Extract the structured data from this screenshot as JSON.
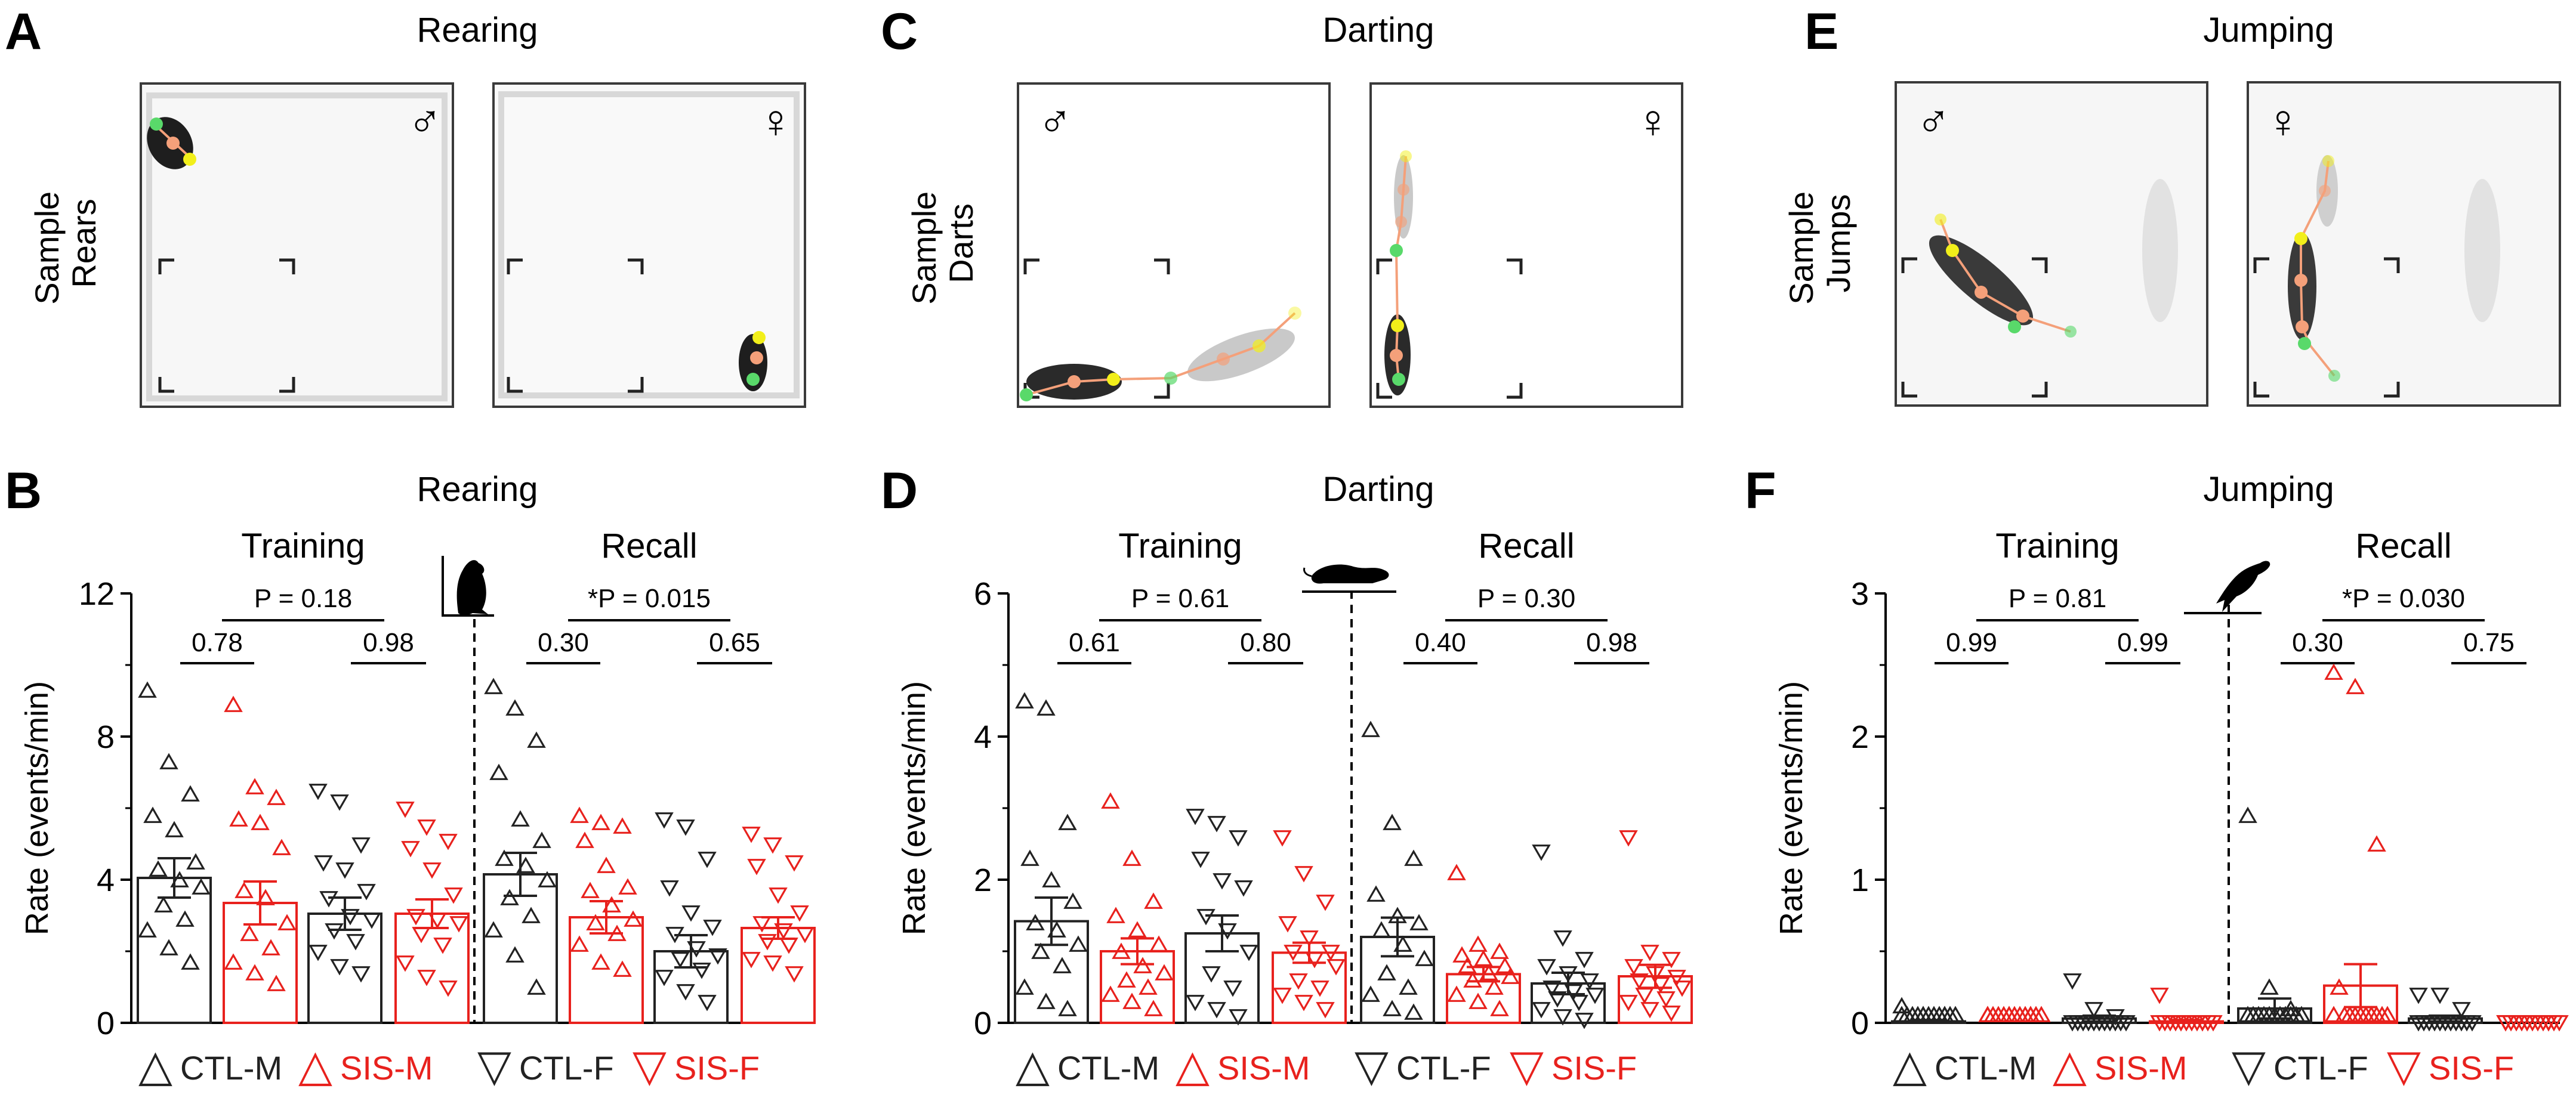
{
  "panel_letters": [
    "A",
    "C",
    "E",
    "B",
    "D",
    "F"
  ],
  "behaviors": [
    "Rearing",
    "Darting",
    "Jumping"
  ],
  "sample_labels": [
    [
      "Sample",
      "Rears"
    ],
    [
      "Sample",
      "Darts"
    ],
    [
      "Sample",
      "Jumps"
    ]
  ],
  "sex_symbols": {
    "male": "♂",
    "female": "♀"
  },
  "phase_labels": {
    "training": "Training",
    "recall": "Recall"
  },
  "legend": [
    {
      "marker": "△",
      "label": "CTL-M",
      "color": "#222222"
    },
    {
      "marker": "△",
      "label": "SIS-M",
      "color": "#e8211d"
    },
    {
      "marker": "▽",
      "label": "CTL-F",
      "color": "#222222"
    },
    {
      "marker": "▽",
      "label": "SIS-F",
      "color": "#e8211d"
    }
  ],
  "colors": {
    "ctl": "#222222",
    "sis": "#e8211d",
    "track_orange": "#f4a07a",
    "track_green": "#59d96a",
    "track_yellow": "#f2ef1a"
  },
  "chart_data": [
    {
      "type": "bar",
      "panel": "B",
      "title": "Rearing",
      "xlabel": "",
      "ylabel": "Rate (events/min)",
      "ylim": [
        0,
        12
      ],
      "yticks": [
        "0",
        "4",
        "8",
        "12"
      ],
      "phases": [
        "Training",
        "Recall"
      ],
      "groups": [
        "CTL-M",
        "SIS-M",
        "CTL-F",
        "SIS-F"
      ],
      "series": [
        {
          "name": "Training",
          "values": [
            4.05,
            3.35,
            3.05,
            3.05
          ],
          "sem": [
            0.55,
            0.6,
            0.45,
            0.4
          ],
          "points": [
            [
              9.1,
              7.1,
              6.2,
              5.6,
              5.2,
              4.3,
              4.1,
              3.8,
              3.6,
              3.1,
              2.7,
              2.4,
              1.9,
              1.5
            ],
            [
              8.7,
              6.4,
              6.1,
              5.5,
              5.4,
              4.7,
              3.5,
              3.3,
              2.6,
              2.3,
              1.9,
              1.5,
              1.2,
              0.9
            ],
            [
              6.5,
              6.2,
              5.0,
              4.5,
              4.3,
              3.7,
              3.5,
              3.0,
              2.9,
              2.6,
              2.3,
              2.0,
              1.6,
              1.4
            ],
            [
              6.0,
              5.5,
              5.1,
              4.9,
              4.3,
              3.6,
              3.0,
              2.9,
              2.8,
              2.5,
              2.2,
              1.7,
              1.3,
              1.0
            ]
          ]
        },
        {
          "name": "Recall",
          "values": [
            4.15,
            2.95,
            2.0,
            2.65
          ],
          "sem": [
            0.6,
            0.45,
            0.45,
            0.3
          ],
          "points": [
            [
              9.2,
              8.6,
              7.7,
              6.8,
              5.5,
              4.9,
              4.4,
              4.2,
              3.8,
              3.3,
              2.8,
              2.4,
              1.7,
              0.8
            ],
            [
              5.6,
              5.4,
              5.3,
              4.9,
              4.2,
              3.6,
              3.5,
              3.1,
              2.7,
              2.6,
              2.3,
              2.0,
              1.5,
              1.3
            ],
            [
              5.7,
              5.5,
              4.6,
              3.8,
              3.1,
              2.7,
              2.5,
              2.1,
              1.9,
              1.8,
              1.5,
              1.3,
              0.9,
              0.6
            ],
            [
              5.3,
              5.0,
              4.5,
              4.4,
              3.6,
              3.1,
              2.8,
              2.6,
              2.5,
              2.3,
              2.2,
              1.8,
              1.7,
              1.4
            ]
          ]
        }
      ],
      "annotations": {
        "top_p": [
          "P = 0.18",
          "*P = 0.015"
        ],
        "pair_p": [
          [
            "0.78",
            "0.98"
          ],
          [
            "0.30",
            "0.65"
          ]
        ]
      }
    },
    {
      "type": "bar",
      "panel": "D",
      "title": "Darting",
      "xlabel": "",
      "ylabel": "Rate (events/min)",
      "ylim": [
        0,
        6
      ],
      "yticks": [
        "0",
        "2",
        "4",
        "6"
      ],
      "phases": [
        "Training",
        "Recall"
      ],
      "groups": [
        "CTL-M",
        "SIS-M",
        "CTL-F",
        "SIS-F"
      ],
      "series": [
        {
          "name": "Training",
          "values": [
            1.42,
            1.0,
            1.25,
            0.98
          ],
          "sem": [
            0.33,
            0.18,
            0.25,
            0.14
          ],
          "points": [
            [
              4.4,
              4.3,
              2.7,
              2.2,
              1.9,
              1.6,
              1.3,
              1.2,
              1.0,
              0.9,
              0.7,
              0.4,
              0.2,
              0.1
            ],
            [
              3.0,
              2.2,
              1.6,
              1.4,
              1.2,
              1.0,
              0.9,
              0.7,
              0.6,
              0.5,
              0.4,
              0.3,
              0.2,
              0.1
            ],
            [
              2.9,
              2.8,
              2.6,
              2.3,
              2.0,
              1.9,
              1.5,
              1.3,
              1.0,
              0.7,
              0.5,
              0.3,
              0.2,
              0.1
            ],
            [
              2.6,
              2.1,
              1.7,
              1.4,
              1.2,
              1.0,
              1.0,
              0.9,
              0.8,
              0.6,
              0.5,
              0.4,
              0.3,
              0.2
            ]
          ]
        },
        {
          "name": "Recall",
          "values": [
            1.2,
            0.68,
            0.55,
            0.65
          ],
          "sem": [
            0.27,
            0.1,
            0.15,
            0.16
          ],
          "points": [
            [
              4.0,
              2.7,
              2.2,
              1.7,
              1.4,
              1.3,
              1.2,
              1.0,
              0.8,
              0.6,
              0.4,
              0.3,
              0.1,
              0.05
            ],
            [
              2.0,
              1.0,
              0.9,
              0.85,
              0.8,
              0.7,
              0.7,
              0.6,
              0.55,
              0.5,
              0.4,
              0.3,
              0.2,
              0.1
            ],
            [
              2.4,
              1.2,
              0.9,
              0.8,
              0.7,
              0.6,
              0.5,
              0.45,
              0.4,
              0.35,
              0.3,
              0.2,
              0.1,
              0.05
            ],
            [
              2.6,
              1.0,
              0.9,
              0.8,
              0.7,
              0.65,
              0.6,
              0.55,
              0.5,
              0.4,
              0.35,
              0.3,
              0.2,
              0.15
            ]
          ]
        }
      ],
      "annotations": {
        "top_p": [
          "P = 0.61",
          "P = 0.30"
        ],
        "pair_p": [
          [
            "0.61",
            "0.80"
          ],
          [
            "0.40",
            "0.98"
          ]
        ]
      }
    },
    {
      "type": "bar",
      "panel": "F",
      "title": "Jumping",
      "xlabel": "",
      "ylabel": "Rate (events/min)",
      "ylim": [
        0,
        3
      ],
      "yticks": [
        "0",
        "1",
        "2",
        "3"
      ],
      "phases": [
        "Training",
        "Recall"
      ],
      "groups": [
        "CTL-M",
        "SIS-M",
        "CTL-F",
        "SIS-F"
      ],
      "series": [
        {
          "name": "Training",
          "values": [
            0.01,
            0.0,
            0.03,
            0.01
          ],
          "sem": [
            0.01,
            0.0,
            0.02,
            0.01
          ],
          "points": [
            [
              0.07,
              0.0,
              0.0,
              0.0,
              0.0,
              0.0,
              0.0,
              0.0,
              0.0,
              0.0,
              0.0,
              0.0,
              0.0,
              0.0
            ],
            [
              0.0,
              0.0,
              0.0,
              0.0,
              0.0,
              0.0,
              0.0,
              0.0,
              0.0,
              0.0,
              0.0,
              0.0,
              0.0,
              0.0
            ],
            [
              0.3,
              0.1,
              0.05,
              0.0,
              0.0,
              0.0,
              0.0,
              0.0,
              0.0,
              0.0,
              0.0,
              0.0,
              0.0,
              0.0
            ],
            [
              0.2,
              0.0,
              0.0,
              0.0,
              0.0,
              0.0,
              0.0,
              0.0,
              0.0,
              0.0,
              0.0,
              0.0,
              0.0,
              0.0
            ]
          ]
        },
        {
          "name": "Recall",
          "values": [
            0.1,
            0.26,
            0.03,
            0.0
          ],
          "sem": [
            0.07,
            0.15,
            0.02,
            0.0
          ],
          "points": [
            [
              1.4,
              0.2,
              0.05,
              0.0,
              0.0,
              0.0,
              0.0,
              0.0,
              0.0,
              0.0,
              0.0,
              0.0,
              0.0,
              0.0
            ],
            [
              2.4,
              2.3,
              1.2,
              0.2,
              0.0,
              0.0,
              0.0,
              0.0,
              0.0,
              0.0,
              0.0,
              0.0,
              0.0,
              0.0
            ],
            [
              0.2,
              0.2,
              0.1,
              0.0,
              0.0,
              0.0,
              0.0,
              0.0,
              0.0,
              0.0,
              0.0,
              0.0,
              0.0,
              0.0
            ],
            [
              0.0,
              0.0,
              0.0,
              0.0,
              0.0,
              0.0,
              0.0,
              0.0,
              0.0,
              0.0,
              0.0,
              0.0,
              0.0,
              0.0
            ]
          ]
        }
      ],
      "annotations": {
        "top_p": [
          "P = 0.81",
          "*P = 0.030"
        ],
        "pair_p": [
          [
            "0.99",
            "0.99"
          ],
          [
            "0.30",
            "0.75"
          ]
        ]
      }
    }
  ]
}
